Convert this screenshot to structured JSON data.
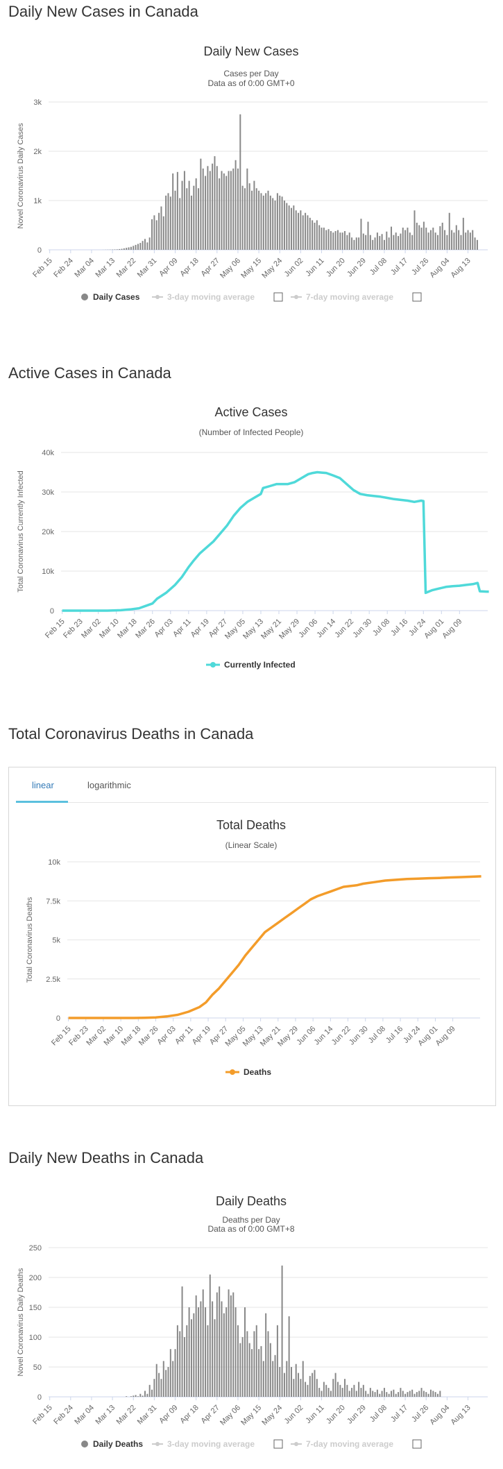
{
  "sections": {
    "daily_cases": "Daily New Cases in Canada",
    "active_cases": "Active Cases in Canada",
    "total_deaths": "Total Coronavirus Deaths in Canada",
    "daily_deaths": "Daily New Deaths in Canada"
  },
  "tabs": {
    "linear": "linear",
    "log": "logarithmic"
  },
  "colors": {
    "bar": "#888888",
    "active": "#4fd9d9",
    "deaths": "#f39c2a",
    "tab": "#337ab7"
  },
  "chart_data": [
    {
      "id": "daily-cases",
      "type": "bar",
      "title": "Daily New Cases",
      "subtitle": "Cases per Day",
      "subtitle2": "Data as of 0:00 GMT+0",
      "ylabel": "Novel Coronavirus Daily Cases",
      "yticks": [
        0,
        1000,
        2000,
        3000
      ],
      "ytick_labels": [
        "0",
        "1k",
        "2k",
        "3k"
      ],
      "ylim": [
        0,
        3000
      ],
      "x_start": "Feb 15",
      "x_tick_labels": [
        "Feb 15",
        "Feb 24",
        "Mar 04",
        "Mar 13",
        "Mar 22",
        "Mar 31",
        "Apr 09",
        "Apr 18",
        "Apr 27",
        "May 06",
        "May 15",
        "May 24",
        "Jun 02",
        "Jun 11",
        "Jun 20",
        "Jun 29",
        "Jul 08",
        "Jul 17",
        "Jul 26",
        "Aug 04",
        "Aug 13"
      ],
      "legend": [
        "Daily Cases",
        "3-day moving average",
        "7-day moving average"
      ],
      "values": [
        0,
        0,
        0,
        0,
        0,
        0,
        0,
        0,
        0,
        0,
        0,
        0,
        0,
        0,
        0,
        0,
        0,
        0,
        0,
        0,
        0,
        0,
        0,
        1,
        2,
        3,
        4,
        6,
        8,
        10,
        15,
        20,
        30,
        40,
        50,
        60,
        80,
        100,
        120,
        140,
        180,
        220,
        150,
        250,
        620,
        700,
        600,
        750,
        880,
        680,
        1100,
        1150,
        1080,
        1550,
        1200,
        1580,
        1050,
        1400,
        1600,
        1250,
        1400,
        1100,
        1300,
        1450,
        1250,
        1850,
        1650,
        1500,
        1700,
        1600,
        1750,
        1900,
        1700,
        1450,
        1600,
        1550,
        1500,
        1600,
        1600,
        1650,
        1820,
        1650,
        2750,
        1300,
        1250,
        1650,
        1350,
        1200,
        1400,
        1250,
        1200,
        1150,
        1100,
        1150,
        1200,
        1100,
        1050,
        1000,
        1150,
        1100,
        1080,
        1000,
        950,
        900,
        850,
        900,
        800,
        750,
        800,
        700,
        750,
        700,
        650,
        600,
        550,
        600,
        500,
        450,
        450,
        400,
        420,
        380,
        350,
        380,
        400,
        350,
        350,
        380,
        300,
        350,
        250,
        200,
        250,
        250,
        630,
        330,
        300,
        570,
        300,
        200,
        250,
        350,
        280,
        320,
        200,
        370,
        250,
        470,
        300,
        350,
        280,
        330,
        450,
        400,
        450,
        350,
        300,
        800,
        550,
        500,
        450,
        570,
        450,
        350,
        400,
        450,
        350,
        300,
        480,
        550,
        400,
        300,
        750,
        400,
        350,
        500,
        400,
        300,
        650,
        350,
        400,
        350,
        400,
        250,
        200
      ]
    },
    {
      "id": "active-cases",
      "type": "line",
      "title": "Active Cases",
      "subtitle": "(Number of Infected People)",
      "ylabel": "Total Coronavirus Currently Infected",
      "yticks": [
        0,
        10000,
        20000,
        30000,
        40000
      ],
      "ytick_labels": [
        "0",
        "10k",
        "20k",
        "30k",
        "40k"
      ],
      "ylim": [
        0,
        40000
      ],
      "x_tick_labels": [
        "Feb 15",
        "Feb 23",
        "Mar 02",
        "Mar 10",
        "Mar 18",
        "Mar 26",
        "Apr 03",
        "Apr 11",
        "Apr 19",
        "Apr 27",
        "May 05",
        "May 13",
        "May 21",
        "May 29",
        "Jun 06",
        "Jun 14",
        "Jun 22",
        "Jun 30",
        "Jul 08",
        "Jul 16",
        "Jul 24",
        "Aug 01",
        "Aug 09"
      ],
      "legend": [
        "Currently Infected"
      ],
      "points": [
        [
          0,
          0
        ],
        [
          20,
          0
        ],
        [
          26,
          100
        ],
        [
          30,
          300
        ],
        [
          34,
          600
        ],
        [
          37,
          1200
        ],
        [
          40,
          1800
        ],
        [
          42,
          3000
        ],
        [
          46,
          4500
        ],
        [
          50,
          6500
        ],
        [
          53,
          8500
        ],
        [
          56,
          11000
        ],
        [
          58,
          12500
        ],
        [
          61,
          14500
        ],
        [
          64,
          16000
        ],
        [
          67,
          17500
        ],
        [
          70,
          19500
        ],
        [
          73,
          21500
        ],
        [
          76,
          24000
        ],
        [
          79,
          26000
        ],
        [
          82,
          27500
        ],
        [
          85,
          28500
        ],
        [
          88,
          29500
        ],
        [
          89,
          31000
        ],
        [
          92,
          31500
        ],
        [
          95,
          32000
        ],
        [
          98,
          32000
        ],
        [
          100,
          32000
        ],
        [
          103,
          32500
        ],
        [
          106,
          33500
        ],
        [
          109,
          34500
        ],
        [
          111,
          34800
        ],
        [
          113,
          35000
        ],
        [
          115,
          34900
        ],
        [
          117,
          34800
        ],
        [
          120,
          34200
        ],
        [
          123,
          33500
        ],
        [
          126,
          32000
        ],
        [
          129,
          30500
        ],
        [
          132,
          29500
        ],
        [
          135,
          29200
        ],
        [
          138,
          29000
        ],
        [
          141,
          28800
        ],
        [
          144,
          28500
        ],
        [
          147,
          28200
        ],
        [
          150,
          28000
        ],
        [
          153,
          27800
        ],
        [
          156,
          27500
        ],
        [
          159,
          27800
        ],
        [
          160,
          27700
        ],
        [
          161,
          4500
        ],
        [
          164,
          5200
        ],
        [
          167,
          5600
        ],
        [
          170,
          6000
        ],
        [
          173,
          6200
        ],
        [
          176,
          6300
        ],
        [
          179,
          6500
        ],
        [
          182,
          6700
        ],
        [
          184,
          7000
        ],
        [
          185,
          4900
        ],
        [
          188,
          4800
        ],
        [
          189,
          4800
        ]
      ]
    },
    {
      "id": "total-deaths",
      "type": "line",
      "title": "Total Deaths",
      "subtitle": "(Linear Scale)",
      "ylabel": "Total Coronavirus Deaths",
      "yticks": [
        0,
        2500,
        5000,
        7500,
        10000
      ],
      "ytick_labels": [
        "0",
        "2.5k",
        "5k",
        "7.5k",
        "10k"
      ],
      "ylim": [
        0,
        10000
      ],
      "x_tick_labels": [
        "Feb 15",
        "Feb 23",
        "Mar 02",
        "Mar 10",
        "Mar 18",
        "Mar 26",
        "Apr 03",
        "Apr 11",
        "Apr 19",
        "Apr 27",
        "May 05",
        "May 13",
        "May 21",
        "May 29",
        "Jun 06",
        "Jun 14",
        "Jun 22",
        "Jun 30",
        "Jul 08",
        "Jul 16",
        "Jul 24",
        "Aug 01",
        "Aug 09"
      ],
      "legend": [
        "Deaths"
      ],
      "points": [
        [
          0,
          0
        ],
        [
          30,
          0
        ],
        [
          35,
          10
        ],
        [
          40,
          30
        ],
        [
          45,
          100
        ],
        [
          50,
          200
        ],
        [
          55,
          400
        ],
        [
          60,
          700
        ],
        [
          63,
          1000
        ],
        [
          66,
          1500
        ],
        [
          69,
          1900
        ],
        [
          72,
          2400
        ],
        [
          75,
          2900
        ],
        [
          78,
          3400
        ],
        [
          81,
          4000
        ],
        [
          84,
          4500
        ],
        [
          87,
          5000
        ],
        [
          90,
          5500
        ],
        [
          93,
          5800
        ],
        [
          96,
          6100
        ],
        [
          99,
          6400
        ],
        [
          102,
          6700
        ],
        [
          105,
          7000
        ],
        [
          108,
          7300
        ],
        [
          111,
          7600
        ],
        [
          114,
          7800
        ],
        [
          117,
          7950
        ],
        [
          120,
          8100
        ],
        [
          123,
          8250
        ],
        [
          126,
          8400
        ],
        [
          129,
          8450
        ],
        [
          132,
          8500
        ],
        [
          135,
          8600
        ],
        [
          140,
          8700
        ],
        [
          145,
          8800
        ],
        [
          150,
          8850
        ],
        [
          155,
          8900
        ],
        [
          160,
          8920
        ],
        [
          165,
          8950
        ],
        [
          170,
          8970
        ],
        [
          175,
          9000
        ],
        [
          180,
          9020
        ],
        [
          185,
          9050
        ],
        [
          189,
          9070
        ]
      ]
    },
    {
      "id": "daily-deaths",
      "type": "bar",
      "title": "Daily Deaths",
      "subtitle": "Deaths per Day",
      "subtitle2": "Data as of 0:00 GMT+8",
      "ylabel": "Novel Coronavirus Daily Deaths",
      "yticks": [
        0,
        50,
        100,
        150,
        200,
        250
      ],
      "ytick_labels": [
        "0",
        "50",
        "100",
        "150",
        "200",
        "250"
      ],
      "ylim": [
        0,
        250
      ],
      "x_tick_labels": [
        "Feb 15",
        "Feb 24",
        "Mar 04",
        "Mar 13",
        "Mar 22",
        "Mar 31",
        "Apr 09",
        "Apr 18",
        "Apr 27",
        "May 06",
        "May 15",
        "May 24",
        "Jun 02",
        "Jun 11",
        "Jun 20",
        "Jun 29",
        "Jul 08",
        "Jul 17",
        "Jul 26",
        "Aug 04",
        "Aug 13"
      ],
      "legend": [
        "Daily Deaths",
        "3-day moving average",
        "7-day moving average"
      ],
      "values": [
        0,
        0,
        0,
        0,
        0,
        0,
        0,
        0,
        0,
        0,
        0,
        0,
        0,
        0,
        0,
        0,
        0,
        0,
        0,
        0,
        0,
        0,
        0,
        0,
        0,
        0,
        0,
        0,
        0,
        0,
        0,
        0,
        0,
        1,
        0,
        1,
        2,
        3,
        1,
        5,
        2,
        10,
        5,
        20,
        12,
        30,
        55,
        40,
        30,
        60,
        45,
        50,
        80,
        60,
        80,
        120,
        110,
        185,
        100,
        120,
        150,
        130,
        140,
        170,
        150,
        160,
        180,
        150,
        120,
        205,
        160,
        130,
        175,
        185,
        160,
        140,
        150,
        180,
        170,
        175,
        150,
        120,
        90,
        100,
        150,
        110,
        90,
        80,
        110,
        120,
        80,
        85,
        60,
        140,
        110,
        90,
        60,
        70,
        120,
        50,
        220,
        40,
        60,
        135,
        50,
        30,
        55,
        40,
        30,
        60,
        25,
        20,
        35,
        40,
        45,
        30,
        15,
        10,
        25,
        20,
        15,
        10,
        30,
        40,
        25,
        20,
        15,
        30,
        20,
        10,
        15,
        20,
        10,
        25,
        15,
        20,
        10,
        5,
        15,
        10,
        8,
        12,
        5,
        10,
        15,
        8,
        5,
        10,
        12,
        5,
        8,
        15,
        10,
        5,
        8,
        10,
        12,
        5,
        8,
        10,
        15,
        10,
        8,
        5,
        12,
        10,
        8,
        5,
        10
      ]
    }
  ]
}
